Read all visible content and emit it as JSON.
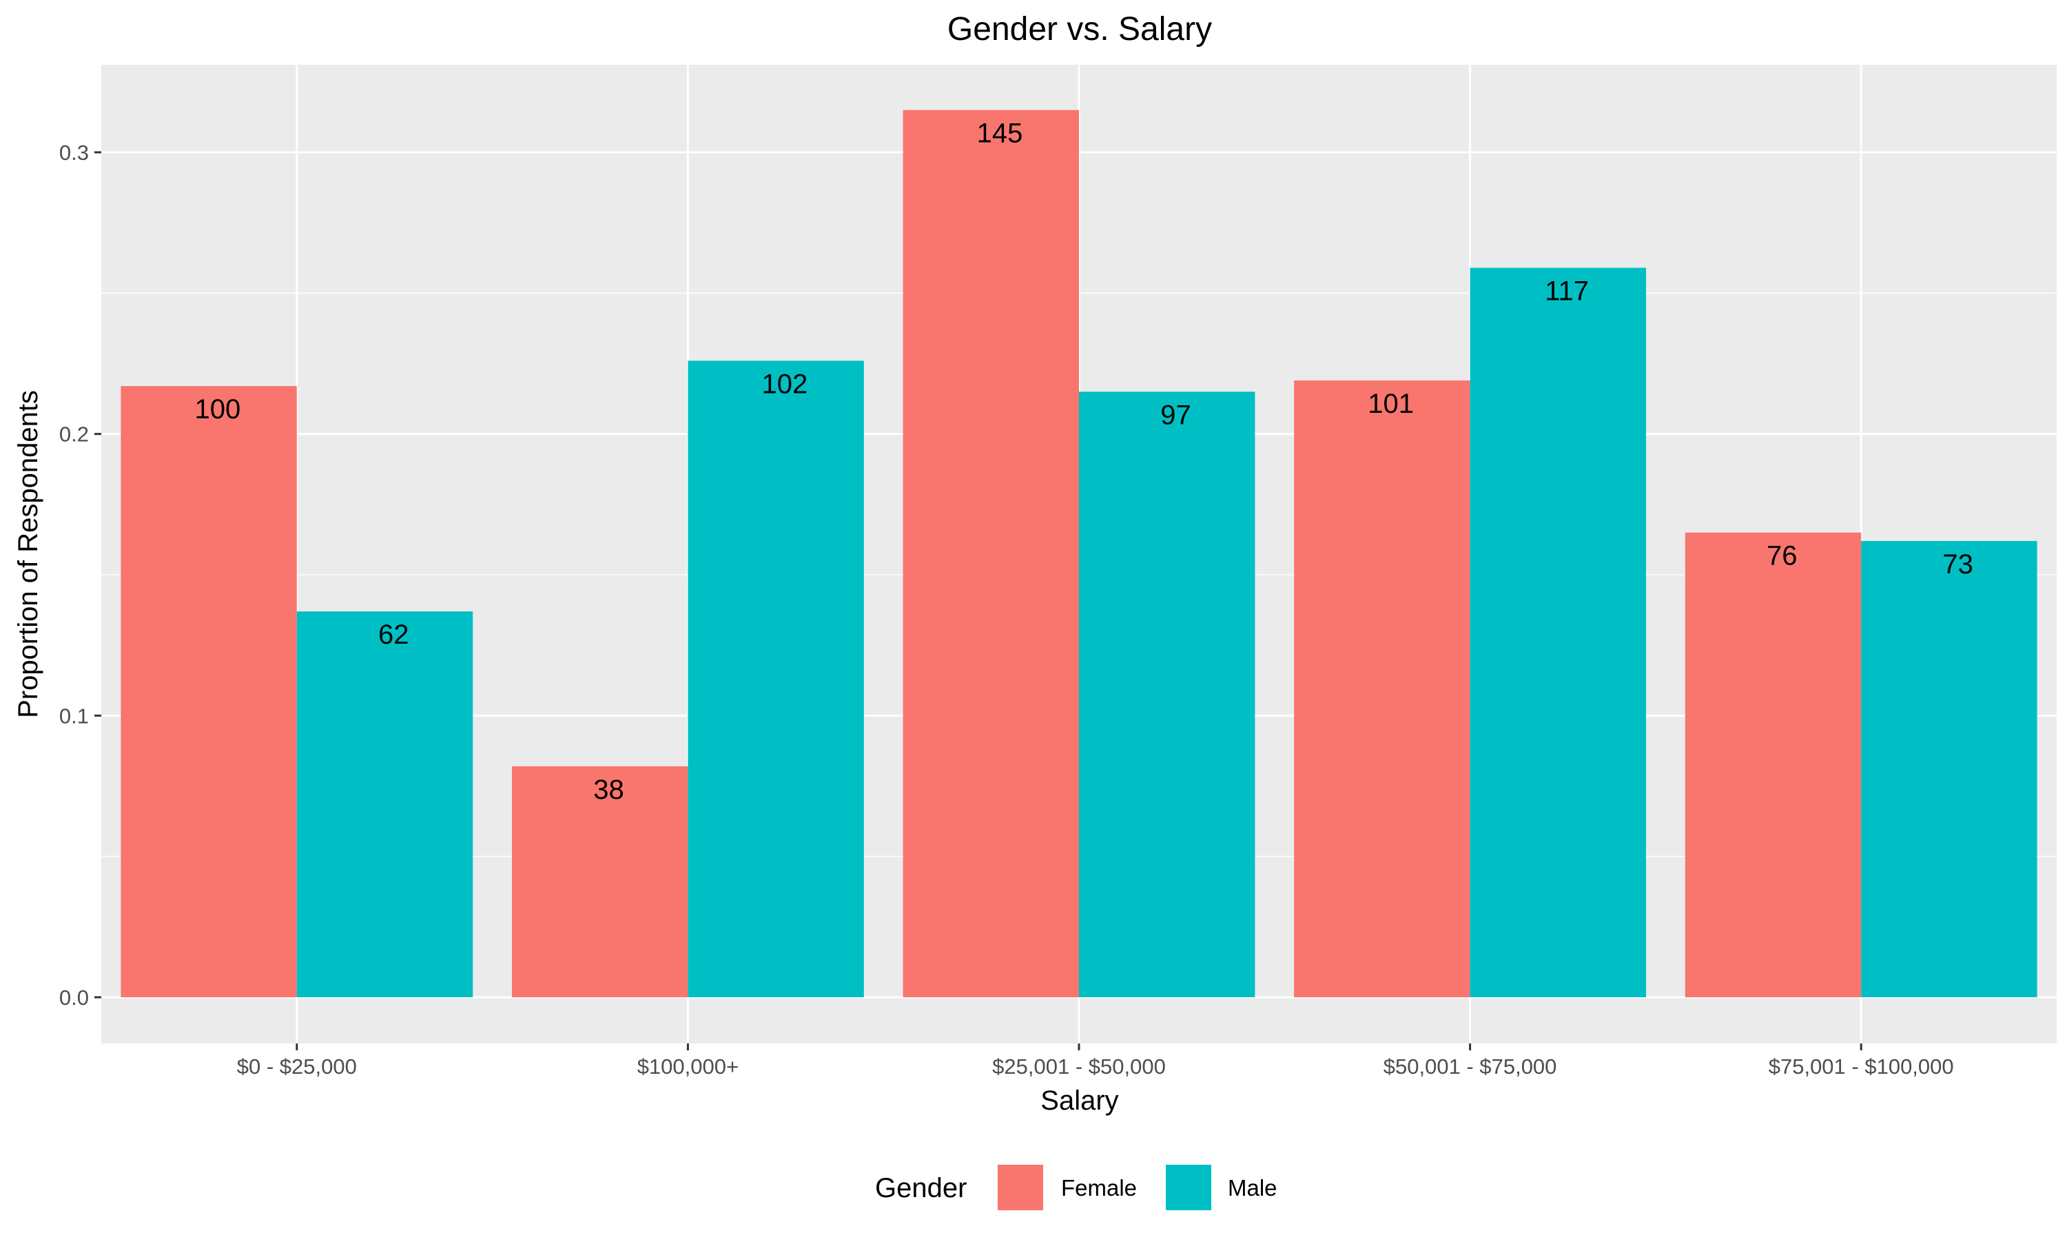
{
  "chart_data": {
    "type": "bar",
    "title": "Gender vs. Salary",
    "xlabel": "Salary",
    "ylabel": "Proportion of Respondents",
    "categories": [
      "$0 - $25,000",
      "$100,000+",
      "$25,001 - $50,000",
      "$50,001 - $75,000",
      "$75,001 - $100,000"
    ],
    "series": [
      {
        "name": "Female",
        "color": "#F8766D",
        "values": [
          0.217,
          0.082,
          0.315,
          0.219,
          0.165
        ],
        "labels": [
          "100",
          "38",
          "145",
          "101",
          "76"
        ]
      },
      {
        "name": "Male",
        "color": "#00BFC4",
        "values": [
          0.137,
          0.226,
          0.215,
          0.259,
          0.162
        ],
        "labels": [
          "62",
          "102",
          "97",
          "117",
          "73"
        ]
      }
    ],
    "ylim": [
      0,
      0.33
    ],
    "yticks": [
      0.0,
      0.1,
      0.2,
      0.3
    ],
    "ytick_labels": [
      "0.0",
      "0.1",
      "0.2",
      "0.3"
    ],
    "grid": true,
    "legend": {
      "title": "Gender",
      "position": "bottom",
      "entries": [
        "Female",
        "Male"
      ]
    }
  }
}
